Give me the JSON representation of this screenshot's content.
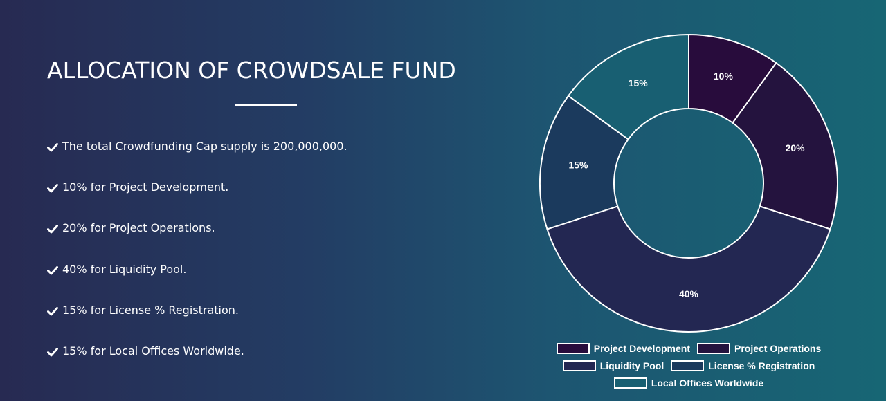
{
  "heading": {
    "title": "ALLOCATION OF CROWDSALE FUND"
  },
  "bullets": [
    "The total Crowdfunding Cap supply is 200,000,000.",
    "10% for Project Development.",
    "20% for Project Operations.",
    "40% for Liquidity Pool.",
    "15% for License % Registration.",
    "15% for Local Offices Worldwide."
  ],
  "icons": {
    "bullet": "check-icon"
  },
  "chart_data": {
    "type": "pie",
    "variant": "doughnut",
    "categories": [
      "Project Development",
      "Project Operations",
      "Liquidity Pool",
      "License % Registration",
      "Local Offices Worldwide"
    ],
    "values": [
      10,
      20,
      40,
      15,
      15
    ],
    "labels": [
      "10%",
      "20%",
      "40%",
      "15%",
      "15%"
    ],
    "colors": [
      "#280c3c",
      "#24133e",
      "#232752",
      "#1b3a5d",
      "#185f72"
    ],
    "start_angle": "top",
    "direction": "clockwise",
    "legend_position": "bottom",
    "title": ""
  }
}
